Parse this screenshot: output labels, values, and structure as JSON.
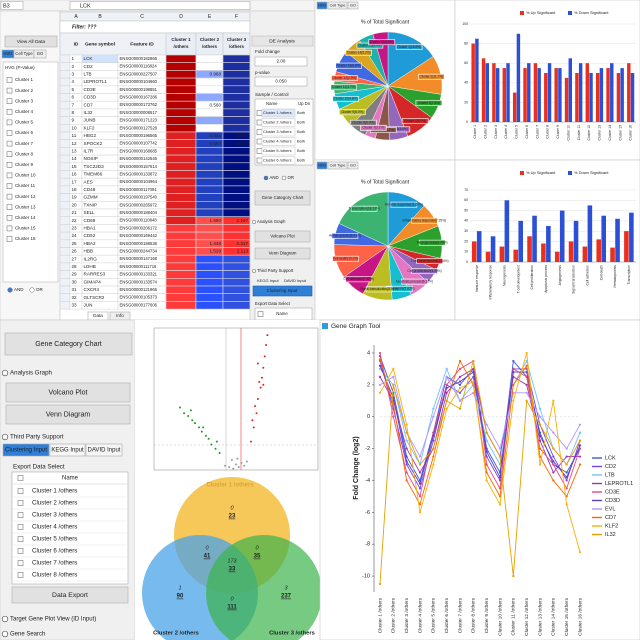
{
  "spreadsheet": {
    "cell_ref": "B3",
    "formula": "LCK",
    "filter": "Filter: ???",
    "column_letters": [
      "A",
      "B",
      "C",
      "D",
      "E",
      "F"
    ],
    "headers": [
      "ID",
      "Gene symbol",
      "Feature ID",
      [
        "Cluster 1",
        "/others"
      ],
      [
        "Cluster 2",
        "/others"
      ],
      [
        "Cluster 3",
        "/others"
      ]
    ],
    "rows": [
      [
        "1",
        "LCK",
        "ENSG00000182866",
        null,
        null,
        null
      ],
      [
        "2",
        "CD2",
        "ENSG00000116824",
        null,
        null,
        null
      ],
      [
        "3",
        "LTB",
        "ENSG00000227507",
        null,
        "0.968",
        null
      ],
      [
        "4",
        "LEPROTL1",
        "ENSG00000104660",
        null,
        null,
        null
      ],
      [
        "5",
        "CD3E",
        "ENSG00000198851",
        null,
        null,
        null
      ],
      [
        "6",
        "CD3D",
        "ENSG00000167286",
        null,
        null,
        null
      ],
      [
        "7",
        "CD7",
        "ENSG00000173762",
        null,
        "0.560",
        null
      ],
      [
        "8",
        "IL32",
        "ENSG00000008517",
        null,
        null,
        null
      ],
      [
        "9",
        "JUNB",
        "ENSG00000171223",
        null,
        null,
        null
      ],
      [
        "10",
        "KLF2",
        "ENSG00000127528",
        null,
        null,
        null
      ],
      [
        "11",
        "HBG2",
        "ENSG00000196565",
        null,
        "0.431",
        "4.604"
      ],
      [
        "12",
        "SPOCK2",
        "ENSG00000107742",
        null,
        "0.567",
        "4.617"
      ],
      [
        "13",
        "IL7R",
        "ENSG00000168685",
        null,
        null,
        null
      ],
      [
        "14",
        "NOSIP",
        "ENSG00000142546",
        null,
        null,
        null
      ],
      [
        "15",
        "TSC22D3",
        "ENSG00000157514",
        null,
        null,
        null
      ],
      [
        "16",
        "TMEM66",
        "ENSG00000133872",
        null,
        null,
        null
      ],
      [
        "17",
        "AES",
        "ENSG00000104964",
        null,
        null,
        null
      ],
      [
        "18",
        "CD48",
        "ENSG00000117091",
        null,
        null,
        null
      ],
      [
        "19",
        "GZMM",
        "ENSG00000197540",
        null,
        null,
        null
      ],
      [
        "20",
        "TXNIP",
        "ENSG00000265972",
        null,
        null,
        null
      ],
      [
        "21",
        "SELL",
        "ENSG00000188404",
        null,
        null,
        null
      ],
      [
        "22",
        "CD69",
        "ENSG00000110848",
        null,
        "1.550",
        "2.197"
      ],
      [
        "23",
        "HBA1",
        "ENSG00000206172",
        null,
        null,
        null
      ],
      [
        "24",
        "CD52",
        "ENSG00000169442",
        null,
        null,
        null
      ],
      [
        "25",
        "HBA2",
        "ENSG00000188536",
        null,
        "1.448",
        "2.317"
      ],
      [
        "26",
        "HBB",
        "ENSG00000244734",
        null,
        "1.529",
        "2.113"
      ],
      [
        "27",
        "IL2RG",
        "ENSG00000147168",
        null,
        null,
        null
      ],
      [
        "28",
        "LDHB",
        "ENSG00000111716",
        null,
        null,
        null
      ],
      [
        "29",
        "RARRES3",
        "ENSG00000133321",
        null,
        null,
        null
      ],
      [
        "30",
        "GIMAP4",
        "ENSG00000133574",
        null,
        null,
        null
      ],
      [
        "31",
        "CXCR4",
        "ENSG00000121966",
        null,
        null,
        null
      ],
      [
        "32",
        "GLTSCR2",
        "ENSG00000105373",
        null,
        null,
        null
      ],
      [
        "33",
        "JUN",
        "ENSG00000177606",
        null,
        null,
        null
      ]
    ],
    "sheet_tabs": [
      "Data",
      "Info"
    ]
  },
  "left_panel": {
    "button": "View All Data",
    "tabs": [
      "HVG",
      "Cell Type",
      "GO"
    ],
    "group": "HVG (P-Value)",
    "clusters": [
      "Cluster 1",
      "Cluster 2",
      "Cluster 3",
      "Cluster 4",
      "Cluster 5",
      "Cluster 6",
      "Cluster 7",
      "Cluster 8",
      "Cluster 9",
      "Cluster 10",
      "Cluster 11",
      "Cluster 12",
      "Cluster 13",
      "Cluster 14",
      "Cluster 15",
      "Cluster 16"
    ],
    "radios": [
      "AND",
      "OR"
    ]
  },
  "de_panel": {
    "title": "DE Analysis",
    "fold_label": "Fold change",
    "fold_value": "2.00",
    "p_label": "p-value",
    "p_value": "0.050",
    "sample_label": "Sample / Control",
    "table_headers": [
      "Name",
      "Up Dn"
    ],
    "table_rows": [
      [
        "Cluster 1 /others",
        "Both"
      ],
      [
        "Cluster 2 /others",
        "Both"
      ],
      [
        "Cluster 3 /others",
        "Both"
      ],
      [
        "Cluster 4 /others",
        "Both"
      ],
      [
        "Cluster 5 /others",
        "Both"
      ],
      [
        "Cluster 6 /others",
        "Both"
      ]
    ],
    "radios": [
      "AND",
      "OR"
    ],
    "gene_category": "Gene Category Chart",
    "analysis_graph": "Analysis Graph",
    "volcano": "Volcano Plot",
    "venn": "Venn Diagram",
    "third_party": "Third Party Support",
    "tabs": [
      "KEGG Input",
      "DAVID Input"
    ],
    "clustering": "Clustering Input",
    "export": "Export Data Select",
    "name": "Name"
  },
  "pie_top": {
    "tabs": [
      "HVG",
      "Cell Type",
      "GO"
    ],
    "title": "% of Total Significant",
    "values": [
      15.8,
      11.7,
      7.5,
      9.0,
      5.6,
      4.2,
      3.1,
      5.0,
      6.0,
      4.8,
      3.7,
      2.9,
      6.6,
      5.2,
      4.4,
      4.5
    ],
    "value_labels": [
      "Cluster 1(15.8%)",
      "Cluster 2(11.7%)",
      "Cluster 3(7.5%)",
      "Cluster 4(9.0%)",
      "Cluster 5(5.6%)",
      "Cluster 6(4.2%)",
      "Cluster 7(3.1%)",
      "Cluster 8(5.0%)",
      "Cluster 9(6.0%)",
      "Cluster 10(4.8%)",
      "Cluster 11(3.7%)",
      "Cluster 12(2.9%)",
      "Cluster 13(6.6%)",
      "Cluster 14(5.2%)",
      "Cluster 15(4.4%)",
      "Cluster 16(4.5%)"
    ],
    "colors": [
      "#1f9bd7",
      "#f28c28",
      "#2ca02c",
      "#d62728",
      "#9467bd",
      "#8c564b",
      "#e377c2",
      "#7f7f7f",
      "#bcbd22",
      "#17becf",
      "#3cb371",
      "#ff6347",
      "#4169e1",
      "#daa520",
      "#20b2aa",
      "#c71585"
    ]
  },
  "pie_bottom": {
    "tabs": [
      "HVG",
      "Cell Type",
      "GO"
    ],
    "title": "% of Total Significant",
    "values": [
      11.66,
      7.29,
      9.74,
      3.64,
      4.49,
      6.12,
      5.83,
      8.91,
      7.58,
      10.2,
      6.41,
      18.13
    ],
    "value_labels": [
      "Immune response(11.66%)",
      "Inflammatory response(7.29%)",
      "Neurogenesis(9.74%)",
      "T cell development(3.64%)",
      "Cell proliferation(4.49%)",
      "Apoptosis process(6.12%)",
      "Angiogenesis(5.83%)",
      "Signal transduction(8.91%)",
      "Cell adhesion(7.58%)",
      "Cell death(10.2%)",
      "Hematopoiesis(6.41%)",
      "Transcription(18.13%)"
    ],
    "colors": [
      "#1f9bd7",
      "#f28c28",
      "#2ca02c",
      "#d62728",
      "#9467bd",
      "#e377c2",
      "#17becf",
      "#bcbd22",
      "#c71585",
      "#ff6347",
      "#4169e1",
      "#3cb371"
    ]
  },
  "bar_top": {
    "categories": [
      "Cluster 1",
      "Cluster 2",
      "Cluster 3",
      "Cluster 4",
      "Cluster 5",
      "Cluster 6",
      "Cluster 7",
      "Cluster 8",
      "Cluster 9",
      "Cluster 10",
      "Cluster 11",
      "Cluster 12",
      "Cluster 13",
      "Cluster 14",
      "Cluster 15",
      "Cluster 16"
    ],
    "series": [
      {
        "name": "% Up Significant",
        "color": "#e8301f",
        "values": [
          80,
          65,
          60,
          55,
          30,
          55,
          60,
          50,
          55,
          45,
          50,
          60,
          50,
          55,
          50,
          60
        ]
      },
      {
        "name": "% Down Significant",
        "color": "#2c4fd8",
        "values": [
          85,
          60,
          55,
          60,
          90,
          60,
          55,
          60,
          55,
          65,
          60,
          50,
          55,
          60,
          55,
          50
        ]
      }
    ],
    "ylim": [
      0,
      100
    ],
    "yticks": [
      0,
      20,
      40,
      60,
      80,
      100
    ]
  },
  "bar_bottom": {
    "categories": [
      "Immune response",
      "Inflammatory response",
      "Neurogenesis",
      "T cell development",
      "Cell proliferation",
      "Apoptosis process",
      "Angiogenesis",
      "Signal transduction",
      "Cell adhesion",
      "Cell death",
      "Hematopoiesis",
      "Transcription"
    ],
    "series": [
      {
        "name": "% Up Significant",
        "color": "#e8301f",
        "values": [
          20,
          10,
          15,
          12,
          25,
          18,
          10,
          20,
          15,
          22,
          14,
          30
        ]
      },
      {
        "name": "% Down Significant",
        "color": "#2c4fd8",
        "values": [
          30,
          25,
          60,
          40,
          45,
          35,
          50,
          40,
          55,
          45,
          42,
          48
        ]
      }
    ],
    "ylim": [
      0,
      70
    ],
    "yticks": [
      0,
      10,
      20,
      30,
      40,
      50,
      60,
      70
    ]
  },
  "bottom_panel": {
    "gene_category": "Gene Category Chart",
    "analysis_graph": "Analysis Graph",
    "volcano": "Volcano Plot",
    "venn": "Venn Diagram",
    "third_party": "Third Party Support",
    "tabs": [
      "Clustering Input",
      "KEGG Input",
      "DAVID Input"
    ],
    "export": "Export Data Select",
    "name": "Name",
    "rows": [
      "Cluster 1 /others",
      "Cluster 2 /others",
      "Cluster 3 /others",
      "Cluster 4 /others",
      "Cluster 5 /others",
      "Cluster 6 /others",
      "Cluster 7 /others",
      "Cluster 8 /others"
    ],
    "data_export": "Data Export",
    "target": "Target Gene Plot View (ID Input)",
    "gene_search": "Gene Search"
  },
  "volcano": {
    "caption": "Cluster 1 /others",
    "xlim": [
      -6,
      6
    ],
    "ylim": [
      0,
      100
    ],
    "points": [
      {
        "color": "#1a9a1a",
        "x": [
          -1.2,
          -1.5,
          -1.8,
          -2.0,
          -2.2,
          -2.5,
          -2.7,
          -3.0,
          -3.2,
          -3.5,
          -3.8,
          -4.1,
          -1.4,
          -2.4,
          -3.3
        ],
        "y": [
          12,
          15,
          18,
          22,
          24,
          27,
          30,
          33,
          35,
          38,
          40,
          44,
          20,
          30,
          42
        ]
      },
      {
        "color": "#e02020",
        "x": [
          1.1,
          1.3,
          1.5,
          1.6,
          1.8,
          1.9,
          2.0,
          2.1,
          2.2,
          2.3,
          1.4,
          1.7,
          2.0,
          1.2,
          1.6
        ],
        "y": [
          20,
          30,
          40,
          50,
          58,
          65,
          72,
          80,
          88,
          95,
          45,
          62,
          60,
          35,
          75
        ]
      },
      {
        "color": "#999999",
        "x": [
          -0.8,
          -0.5,
          -0.2,
          0.0,
          0.2,
          0.4,
          0.6,
          0.8,
          -0.3,
          0.1
        ],
        "y": [
          3,
          2,
          1,
          4,
          2,
          5,
          3,
          6,
          7,
          8
        ]
      }
    ]
  },
  "venn": {
    "regions": [
      [
        0,
        23
      ],
      [
        0,
        41
      ],
      [
        0,
        35
      ],
      [
        173,
        33
      ],
      [
        1,
        90
      ],
      [
        3,
        237
      ],
      [
        0,
        111
      ]
    ],
    "labels": [
      "Cluster 2 /others",
      "Cluster 3 /others"
    ]
  },
  "gene_graph": {
    "title": "Gene Graph Tool",
    "ylabel": "Fold Change (log2)",
    "categories": [
      "Cluster 1 /others",
      "Cluster 2 /others",
      "Cluster 3 /others",
      "Cluster 4 /others",
      "Cluster 5 /others",
      "Cluster 6 /others",
      "Cluster 7 /others",
      "Cluster 8 /others",
      "Cluster 9 /others",
      "Cluster 10 /others",
      "Cluster 11 /others",
      "Cluster 12 /others",
      "Cluster 13 /others",
      "Cluster 14 /others",
      "Cluster 15 /others",
      "Cluster 16 /others"
    ],
    "ylim": [
      -11,
      4.5
    ],
    "yticks": [
      4,
      2,
      0,
      -2,
      -4,
      -6,
      -8,
      -10
    ],
    "series": [
      {
        "name": "LCK",
        "color": "#3b5bdb",
        "values": [
          3.8,
          1.5,
          -2.5,
          -4.0,
          -1.0,
          2.5,
          2.0,
          3.0,
          -2.0,
          -3.5,
          3.5,
          2.5,
          -1.0,
          -3.0,
          -3.5,
          -2.0
        ]
      },
      {
        "name": "CD2",
        "color": "#7048e8",
        "values": [
          3.5,
          0.5,
          -3.0,
          -4.5,
          -1.5,
          2.0,
          1.5,
          2.5,
          -2.5,
          -4.0,
          3.0,
          3.0,
          -0.5,
          -2.5,
          -4.0,
          -1.5
        ]
      },
      {
        "name": "LTB",
        "color": "#74c0fc",
        "values": [
          3.0,
          2.0,
          -1.5,
          -3.0,
          0.5,
          3.0,
          1.0,
          2.0,
          -1.5,
          -3.0,
          2.0,
          3.5,
          0.5,
          -2.0,
          -3.0,
          -1.0
        ]
      },
      {
        "name": "LEPROTL1",
        "color": "#9c36b5",
        "values": [
          2.5,
          1.0,
          -2.0,
          -3.5,
          -2.0,
          1.5,
          2.5,
          3.0,
          -1.0,
          -2.5,
          2.5,
          2.0,
          -1.5,
          -3.5,
          -2.5,
          -2.5
        ]
      },
      {
        "name": "CD3E",
        "color": "#e64980",
        "values": [
          4.0,
          0.0,
          -3.5,
          -5.0,
          -1.0,
          2.0,
          3.0,
          3.5,
          -3.0,
          -4.5,
          3.0,
          2.5,
          -2.0,
          -3.0,
          -4.5,
          -2.0
        ]
      },
      {
        "name": "CD3D",
        "color": "#5f3dc4",
        "values": [
          3.2,
          1.2,
          -2.8,
          -4.2,
          -1.2,
          1.8,
          2.2,
          2.8,
          -2.2,
          -3.8,
          2.8,
          2.8,
          -1.2,
          -2.8,
          -3.8,
          -1.8
        ]
      },
      {
        "name": "EVL",
        "color": "#b197fc",
        "values": [
          2.0,
          2.5,
          -1.0,
          -2.5,
          0.0,
          2.5,
          1.0,
          1.5,
          -0.5,
          -2.0,
          1.5,
          1.5,
          0.0,
          -1.0,
          -2.0,
          -0.5
        ]
      },
      {
        "name": "CD7",
        "color": "#f76707",
        "values": [
          3.6,
          0.8,
          -4.0,
          -5.5,
          -2.5,
          1.0,
          3.5,
          2.0,
          -3.5,
          -5.0,
          2.0,
          3.2,
          -2.5,
          -4.0,
          -5.0,
          -3.0
        ]
      },
      {
        "name": "KLF2",
        "color": "#fab005",
        "values": [
          1.5,
          3.0,
          -0.5,
          -6.0,
          -3.0,
          0.5,
          1.8,
          2.2,
          -4.0,
          -5.5,
          1.0,
          4.0,
          -3.0,
          1.0,
          -5.5,
          -8.5
        ]
      },
      {
        "name": "IL32",
        "color": "#e6a100",
        "values": [
          -10.5,
          2.0,
          -1.0,
          -3.0,
          -2.0,
          1.0,
          0.5,
          3.5,
          -1.0,
          -2.5,
          -10.0,
          1.0,
          -0.5,
          -2.0,
          -3.0,
          -1.5
        ]
      }
    ]
  }
}
